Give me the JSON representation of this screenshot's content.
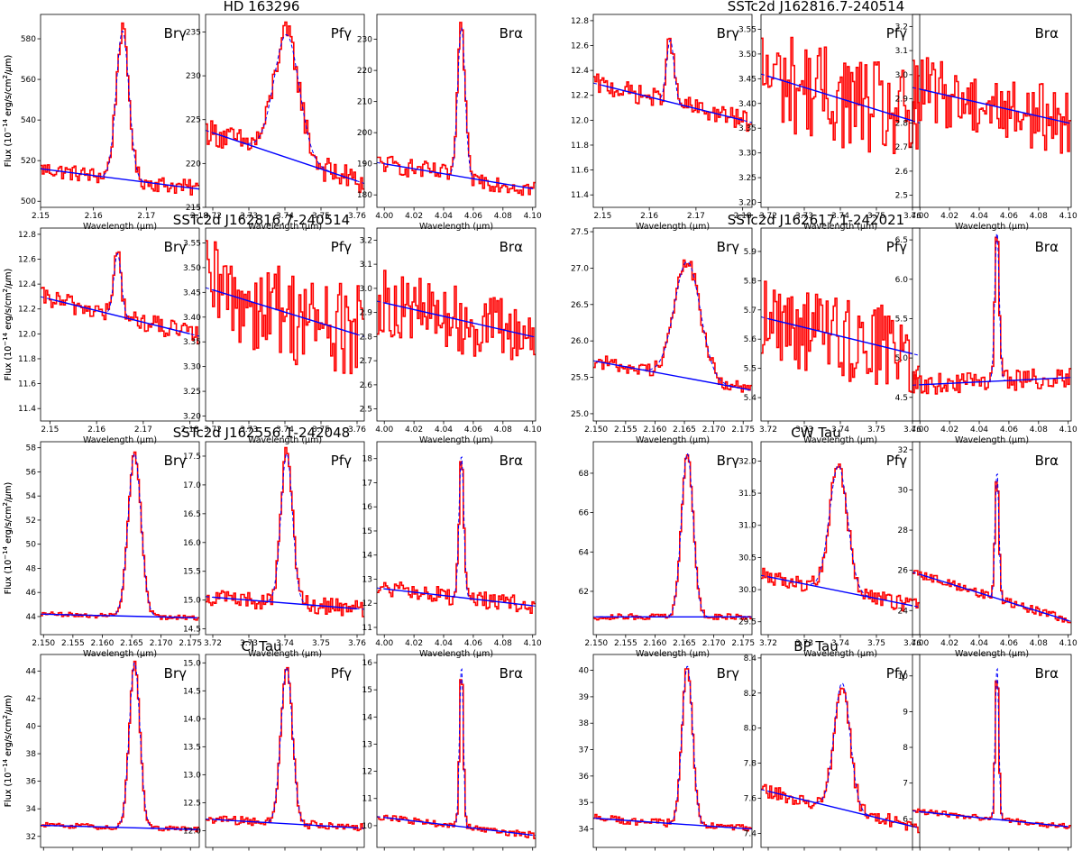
{
  "figure": {
    "common_ylabel": "Flux (10$^{-14}$ erg/s/cm$^2$/$\\mu$m)",
    "common_xlabel": "Wavelength ($\\mu$m)",
    "ylabel_display": [
      "Flux (10",
      "−14",
      " erg/s/cm",
      "2",
      "/",
      "μ",
      "m)"
    ],
    "xlabel_display": "Wavelength (μm)",
    "colors": {
      "data": "#ff0000",
      "fit": "#0000ff",
      "model": "#0000ff"
    }
  },
  "stars": [
    {
      "name": "HD 163296"
    },
    {
      "name": "SSTc2d J162816.7-240514"
    },
    {
      "name": "SSTc2d J162816.7-240514"
    },
    {
      "name": "SSTc2d J162617.1-242021"
    },
    {
      "name": "SSTc2d J162556.1-242048"
    },
    {
      "name": "CW Tau"
    },
    {
      "name": "CI Tau"
    },
    {
      "name": "BP Tau"
    }
  ],
  "chart_data": [
    {
      "type": "line",
      "star": "HD 163296",
      "line": "Brγ",
      "xlim": [
        2.15,
        2.18
      ],
      "ylim": [
        497,
        592
      ],
      "xticks": [
        "2.15",
        "2.16",
        "2.17",
        "2.18"
      ],
      "yticks": [
        "500",
        "520",
        "540",
        "560",
        "580"
      ],
      "continuum": [
        [
          2.15,
          516
        ],
        [
          2.18,
          506
        ]
      ],
      "peak": {
        "center": 2.1655,
        "width": 0.0012,
        "amp": 73
      },
      "noise": 4
    },
    {
      "type": "line",
      "star": "HD 163296",
      "line": "Pfγ",
      "xlim": [
        3.718,
        3.762
      ],
      "ylim": [
        215,
        237
      ],
      "xticks": [
        "3.72",
        "3.73",
        "3.74",
        "3.75",
        "3.76"
      ],
      "yticks": [
        "215",
        "220",
        "225",
        "230",
        "235"
      ],
      "continuum": [
        [
          3.72,
          223.5
        ],
        [
          3.76,
          218
        ]
      ],
      "peak": {
        "center": 3.7405,
        "width": 0.0035,
        "amp": 14
      },
      "noise": 1.5
    },
    {
      "type": "line",
      "star": "HD 163296",
      "line": "Brα",
      "xlim": [
        3.995,
        4.102
      ],
      "ylim": [
        176,
        238
      ],
      "xticks": [
        "4.00",
        "4.02",
        "4.04",
        "4.06",
        "4.08",
        "4.10"
      ],
      "yticks": [
        "180",
        "190",
        "200",
        "210",
        "220",
        "230"
      ],
      "continuum": [
        [
          4.0,
          190
        ],
        [
          4.1,
          182
        ]
      ],
      "peak": {
        "center": 4.052,
        "width": 0.0025,
        "amp": 48
      },
      "noise": 3
    },
    {
      "type": "line",
      "star": "SSTc2d J162816.7-240514",
      "line": "Brγ",
      "xlim": [
        2.148,
        2.182
      ],
      "ylim": [
        11.3,
        12.85
      ],
      "xticks": [
        "2.15",
        "2.16",
        "2.17",
        "2.18"
      ],
      "yticks": [
        "11.4",
        "11.6",
        "11.8",
        "12.0",
        "12.2",
        "12.4",
        "12.6",
        "12.8"
      ],
      "continuum": [
        [
          2.15,
          12.28
        ],
        [
          2.18,
          12.0
        ]
      ],
      "peak": {
        "center": 2.1645,
        "width": 0.0008,
        "amp": 0.5
      },
      "noise": 0.08
    },
    {
      "type": "line",
      "star": "SSTc2d J162816.7-240514",
      "line": "Pfγ",
      "xlim": [
        3.718,
        3.762
      ],
      "ylim": [
        3.19,
        3.58
      ],
      "xticks": [
        "3.72",
        "3.73",
        "3.74",
        "3.75",
        "3.76"
      ],
      "yticks": [
        "3.20",
        "3.25",
        "3.30",
        "3.35",
        "3.40",
        "3.45",
        "3.50",
        "3.55"
      ],
      "continuum": [
        [
          3.72,
          3.455
        ],
        [
          3.76,
          3.365
        ]
      ],
      "peak": {
        "center": 3.74,
        "width": 0.003,
        "amp": 0
      },
      "noise": 0.1
    },
    {
      "type": "line",
      "star": "SSTc2d J162816.7-240514",
      "line": "Brα",
      "xlim": [
        3.995,
        4.102
      ],
      "ylim": [
        2.45,
        3.25
      ],
      "xticks": [
        "4.00",
        "4.02",
        "4.04",
        "4.06",
        "4.08",
        "4.10"
      ],
      "yticks": [
        "2.5",
        "2.6",
        "2.7",
        "2.8",
        "2.9",
        "3.0",
        "3.1",
        "3.2"
      ],
      "continuum": [
        [
          4.0,
          2.94
        ],
        [
          4.1,
          2.8
        ]
      ],
      "peak": {
        "center": 4.052,
        "width": 0.003,
        "amp": 0
      },
      "noise": 0.14
    },
    {
      "type": "line",
      "star": "SSTc2d J162816.7-240514",
      "line": "Brγ",
      "xlim": [
        2.148,
        2.182
      ],
      "ylim": [
        11.3,
        12.85
      ],
      "xticks": [
        "2.15",
        "2.16",
        "2.17",
        "2.18"
      ],
      "yticks": [
        "11.4",
        "11.6",
        "11.8",
        "12.0",
        "12.2",
        "12.4",
        "12.6",
        "12.8"
      ],
      "continuum": [
        [
          2.15,
          12.28
        ],
        [
          2.18,
          12.0
        ]
      ],
      "peak": {
        "center": 2.1645,
        "width": 0.0008,
        "amp": 0.5
      },
      "noise": 0.08
    },
    {
      "type": "line",
      "star": "SSTc2d J162816.7-240514",
      "line": "Pfγ",
      "xlim": [
        3.718,
        3.762
      ],
      "ylim": [
        3.19,
        3.58
      ],
      "xticks": [
        "3.72",
        "3.73",
        "3.74",
        "3.75",
        "3.76"
      ],
      "yticks": [
        "3.20",
        "3.25",
        "3.30",
        "3.35",
        "3.40",
        "3.45",
        "3.50",
        "3.55"
      ],
      "continuum": [
        [
          3.72,
          3.455
        ],
        [
          3.76,
          3.365
        ]
      ],
      "peak": {
        "center": 3.74,
        "width": 0.003,
        "amp": 0
      },
      "noise": 0.1
    },
    {
      "type": "line",
      "star": "SSTc2d J162816.7-240514",
      "line": "Brα",
      "xlim": [
        3.995,
        4.102
      ],
      "ylim": [
        2.45,
        3.25
      ],
      "xticks": [
        "4.00",
        "4.02",
        "4.04",
        "4.06",
        "4.08",
        "4.10"
      ],
      "yticks": [
        "2.5",
        "2.6",
        "2.7",
        "2.8",
        "2.9",
        "3.0",
        "3.1",
        "3.2"
      ],
      "continuum": [
        [
          4.0,
          2.94
        ],
        [
          4.1,
          2.8
        ]
      ],
      "peak": {
        "center": 4.052,
        "width": 0.003,
        "amp": 0
      },
      "noise": 0.14
    },
    {
      "type": "line",
      "star": "SSTc2d J162617.1-242021",
      "line": "Brγ",
      "xlim": [
        2.1495,
        2.1765
      ],
      "ylim": [
        24.9,
        27.55
      ],
      "xticks": [
        "2.150",
        "2.155",
        "2.160",
        "2.165",
        "2.170",
        "2.175"
      ],
      "yticks": [
        "25.0",
        "25.5",
        "26.0",
        "26.5",
        "27.0",
        "27.5"
      ],
      "continuum": [
        [
          2.15,
          25.72
        ],
        [
          2.176,
          25.33
        ]
      ],
      "peak": {
        "center": 2.1655,
        "width": 0.0022,
        "amp": 1.6
      },
      "noise": 0.1
    },
    {
      "type": "line",
      "star": "SSTc2d J162617.1-242021",
      "line": "Pfγ",
      "xlim": [
        3.718,
        3.762
      ],
      "ylim": [
        5.32,
        5.98
      ],
      "xticks": [
        "3.72",
        "3.73",
        "3.74",
        "3.75",
        "3.76"
      ],
      "yticks": [
        "5.4",
        "5.5",
        "5.6",
        "5.7",
        "5.8",
        "5.9"
      ],
      "continuum": [
        [
          3.72,
          5.67
        ],
        [
          3.76,
          5.55
        ]
      ],
      "peak": {
        "center": 3.74,
        "width": 0.003,
        "amp": 0
      },
      "noise": 0.15
    },
    {
      "type": "line",
      "star": "SSTc2d J162617.1-242021",
      "line": "Brα",
      "xlim": [
        3.995,
        4.102
      ],
      "ylim": [
        4.2,
        6.65
      ],
      "xticks": [
        "4.00",
        "4.02",
        "4.04",
        "4.06",
        "4.08",
        "4.10"
      ],
      "yticks": [
        "4.5",
        "5.0",
        "5.5",
        "6.0",
        "6.5"
      ],
      "continuum": [
        [
          4.0,
          4.66
        ],
        [
          4.1,
          4.75
        ]
      ],
      "peak": {
        "center": 4.052,
        "width": 0.0015,
        "amp": 1.9
      },
      "noise": 0.13
    },
    {
      "type": "line",
      "star": "SSTc2d J162556.1-242048",
      "line": "Brγ",
      "xlim": [
        2.1495,
        2.1765
      ],
      "ylim": [
        42.5,
        58.5
      ],
      "xticks": [
        "2.150",
        "2.155",
        "2.160",
        "2.165",
        "2.170",
        "2.175"
      ],
      "yticks": [
        "44",
        "46",
        "48",
        "50",
        "52",
        "54",
        "56",
        "58"
      ],
      "continuum": [
        [
          2.15,
          44.2
        ],
        [
          2.176,
          43.9
        ]
      ],
      "peak": {
        "center": 2.1655,
        "width": 0.0011,
        "amp": 13.5
      },
      "noise": 0.2
    },
    {
      "type": "line",
      "star": "SSTc2d J162556.1-242048",
      "line": "Pfγ",
      "xlim": [
        3.718,
        3.762
      ],
      "ylim": [
        14.4,
        17.75
      ],
      "xticks": [
        "3.72",
        "3.73",
        "3.74",
        "3.75",
        "3.76"
      ],
      "yticks": [
        "14.5",
        "15.0",
        "15.5",
        "16.0",
        "16.5",
        "17.0",
        "17.5"
      ],
      "continuum": [
        [
          3.72,
          15.05
        ],
        [
          3.76,
          14.85
        ]
      ],
      "peak": {
        "center": 3.7405,
        "width": 0.0016,
        "amp": 2.6
      },
      "noise": 0.15
    },
    {
      "type": "line",
      "star": "SSTc2d J162556.1-242048",
      "line": "Brα",
      "xlim": [
        3.995,
        4.102
      ],
      "ylim": [
        10.7,
        18.7
      ],
      "xticks": [
        "4.00",
        "4.02",
        "4.04",
        "4.06",
        "4.08",
        "4.10"
      ],
      "yticks": [
        "11",
        "12",
        "13",
        "14",
        "15",
        "16",
        "17",
        "18"
      ],
      "continuum": [
        [
          4.0,
          12.6
        ],
        [
          4.1,
          11.9
        ]
      ],
      "peak": {
        "center": 4.052,
        "width": 0.0016,
        "amp": 5.9
      },
      "noise": 0.35
    },
    {
      "type": "line",
      "star": "CW Tau",
      "line": "Brγ",
      "xlim": [
        2.1495,
        2.1765
      ],
      "ylim": [
        59.8,
        69.6
      ],
      "xticks": [
        "2.150",
        "2.155",
        "2.160",
        "2.165",
        "2.170",
        "2.175"
      ],
      "yticks": [
        "62",
        "64",
        "66",
        "68"
      ],
      "continuum": [
        [
          2.15,
          60.7
        ],
        [
          2.176,
          60.7
        ]
      ],
      "peak": {
        "center": 2.1655,
        "width": 0.001,
        "amp": 8.3
      },
      "noise": 0.15
    },
    {
      "type": "line",
      "star": "CW Tau",
      "line": "Pfγ",
      "xlim": [
        3.718,
        3.762
      ],
      "ylim": [
        29.3,
        32.3
      ],
      "xticks": [
        "3.72",
        "3.73",
        "3.74",
        "3.75",
        "3.76"
      ],
      "yticks": [
        "29.5",
        "30.0",
        "30.5",
        "31.0",
        "31.5",
        "32.0"
      ],
      "continuum": [
        [
          3.72,
          30.2
        ],
        [
          3.76,
          29.75
        ]
      ],
      "peak": {
        "center": 3.7395,
        "width": 0.0025,
        "amp": 1.95
      },
      "noise": 0.12
    },
    {
      "type": "line",
      "star": "CW Tau",
      "line": "Brα",
      "xlim": [
        3.995,
        4.102
      ],
      "ylim": [
        22.8,
        32.4
      ],
      "xticks": [
        "4.00",
        "4.02",
        "4.04",
        "4.06",
        "4.08",
        "4.10"
      ],
      "yticks": [
        "24",
        "26",
        "28",
        "30",
        "32"
      ],
      "continuum": [
        [
          4.0,
          25.8
        ],
        [
          4.1,
          23.5
        ]
      ],
      "peak": {
        "center": 4.052,
        "width": 0.0013,
        "amp": 6.3
      },
      "noise": 0.2
    },
    {
      "type": "line",
      "star": "CI Tau",
      "line": "Brγ",
      "xlim": [
        2.1495,
        2.1765
      ],
      "ylim": [
        31.2,
        45.2
      ],
      "xticks": [
        "2.150",
        "2.155",
        "2.160",
        "2.165",
        "2.170",
        "2.175"
      ],
      "yticks": [
        "32",
        "34",
        "36",
        "38",
        "40",
        "42",
        "44"
      ],
      "continuum": [
        [
          2.15,
          32.8
        ],
        [
          2.176,
          32.5
        ]
      ],
      "peak": {
        "center": 2.1655,
        "width": 0.0009,
        "amp": 12
      },
      "noise": 0.2
    },
    {
      "type": "line",
      "star": "CI Tau",
      "line": "Pfγ",
      "xlim": [
        3.718,
        3.762
      ],
      "ylim": [
        11.7,
        15.15
      ],
      "xticks": [
        "3.72",
        "3.73",
        "3.74",
        "3.75",
        "3.76"
      ],
      "yticks": [
        "12.0",
        "12.5",
        "13.0",
        "13.5",
        "14.0",
        "14.5",
        "15.0"
      ],
      "continuum": [
        [
          3.72,
          12.2
        ],
        [
          3.76,
          12.05
        ]
      ],
      "peak": {
        "center": 3.7405,
        "width": 0.0016,
        "amp": 2.8
      },
      "noise": 0.08
    },
    {
      "type": "line",
      "star": "CI Tau",
      "line": "Brα",
      "xlim": [
        3.995,
        4.102
      ],
      "ylim": [
        9.2,
        16.3
      ],
      "xticks": [
        "4.00",
        "4.02",
        "4.04",
        "4.06",
        "4.08",
        "4.10"
      ],
      "yticks": [
        "10",
        "11",
        "12",
        "13",
        "14",
        "15",
        "16"
      ],
      "continuum": [
        [
          4.0,
          10.3
        ],
        [
          4.1,
          9.65
        ]
      ],
      "peak": {
        "center": 4.052,
        "width": 0.0013,
        "amp": 5.9
      },
      "noise": 0.12
    },
    {
      "type": "line",
      "star": "BP Tau",
      "line": "Brγ",
      "xlim": [
        2.1495,
        2.1765
      ],
      "ylim": [
        33.3,
        40.6
      ],
      "xticks": [
        "2.150",
        "2.155",
        "2.160",
        "2.165",
        "2.170",
        "2.175"
      ],
      "yticks": [
        "34",
        "35",
        "36",
        "37",
        "38",
        "39",
        "40"
      ],
      "continuum": [
        [
          2.15,
          34.4
        ],
        [
          2.176,
          34.0
        ]
      ],
      "peak": {
        "center": 2.1655,
        "width": 0.0009,
        "amp": 6
      },
      "noise": 0.15
    },
    {
      "type": "line",
      "star": "BP Tau",
      "line": "Pfγ",
      "xlim": [
        3.718,
        3.762
      ],
      "ylim": [
        7.32,
        8.42
      ],
      "xticks": [
        "3.72",
        "3.73",
        "3.74",
        "3.75",
        "3.76"
      ],
      "yticks": [
        "7.4",
        "7.6",
        "7.8",
        "8.0",
        "8.2",
        "8.4"
      ],
      "continuum": [
        [
          3.72,
          7.64
        ],
        [
          3.76,
          7.44
        ]
      ],
      "peak": {
        "center": 3.7405,
        "width": 0.0022,
        "amp": 0.72
      },
      "noise": 0.04
    },
    {
      "type": "line",
      "star": "BP Tau",
      "line": "Brα",
      "xlim": [
        3.995,
        4.102
      ],
      "ylim": [
        5.2,
        10.6
      ],
      "xticks": [
        "4.00",
        "4.02",
        "4.04",
        "4.06",
        "4.08",
        "4.10"
      ],
      "yticks": [
        "6",
        "7",
        "8",
        "9",
        "10"
      ],
      "continuum": [
        [
          4.0,
          6.2
        ],
        [
          4.1,
          5.78
        ]
      ],
      "peak": {
        "center": 4.052,
        "width": 0.0012,
        "amp": 4.3
      },
      "noise": 0.08
    }
  ]
}
